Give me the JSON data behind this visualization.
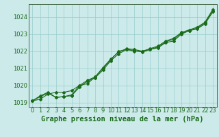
{
  "title": "Graphe pression niveau de la mer (hPa)",
  "xlabel_hours": [
    0,
    1,
    2,
    3,
    4,
    5,
    6,
    7,
    8,
    9,
    10,
    11,
    12,
    13,
    14,
    15,
    16,
    17,
    18,
    19,
    20,
    21,
    22,
    23
  ],
  "line1": [
    1019.1,
    1019.2,
    1019.5,
    1019.6,
    1019.6,
    1019.7,
    1020.0,
    1020.1,
    1020.5,
    1021.0,
    1021.5,
    1022.0,
    1022.1,
    1022.0,
    1022.0,
    1022.1,
    1022.2,
    1022.5,
    1022.6,
    1023.0,
    1023.2,
    1023.3,
    1023.6,
    1024.3
  ],
  "line2": [
    1019.1,
    1019.4,
    1019.6,
    1019.3,
    1019.35,
    1019.4,
    1019.9,
    1020.25,
    1020.45,
    1020.9,
    1021.45,
    1021.85,
    1022.1,
    1022.05,
    1021.95,
    1022.1,
    1022.25,
    1022.55,
    1022.7,
    1023.05,
    1023.2,
    1023.35,
    1023.65,
    1024.35
  ],
  "line3": [
    1019.1,
    1019.35,
    1019.55,
    1019.3,
    1019.35,
    1019.45,
    1020.0,
    1020.3,
    1020.5,
    1021.05,
    1021.55,
    1021.95,
    1022.15,
    1022.1,
    1022.0,
    1022.15,
    1022.3,
    1022.6,
    1022.75,
    1023.1,
    1023.25,
    1023.4,
    1023.7,
    1024.45
  ],
  "line_color": "#1a6b1a",
  "bg_color": "#cceaea",
  "grid_color": "#99cccc",
  "ylim": [
    1018.75,
    1024.75
  ],
  "xlim": [
    -0.5,
    23.5
  ],
  "yticks": [
    1019,
    1020,
    1021,
    1022,
    1023,
    1024
  ],
  "xticks": [
    0,
    1,
    2,
    3,
    4,
    5,
    6,
    7,
    8,
    9,
    10,
    11,
    12,
    13,
    14,
    15,
    16,
    17,
    18,
    19,
    20,
    21,
    22,
    23
  ],
  "title_fontsize": 7.5,
  "tick_fontsize": 6,
  "marker": "D",
  "marker_size": 2,
  "linewidth": 0.8,
  "fig_width": 3.2,
  "fig_height": 2.0,
  "dpi": 100
}
